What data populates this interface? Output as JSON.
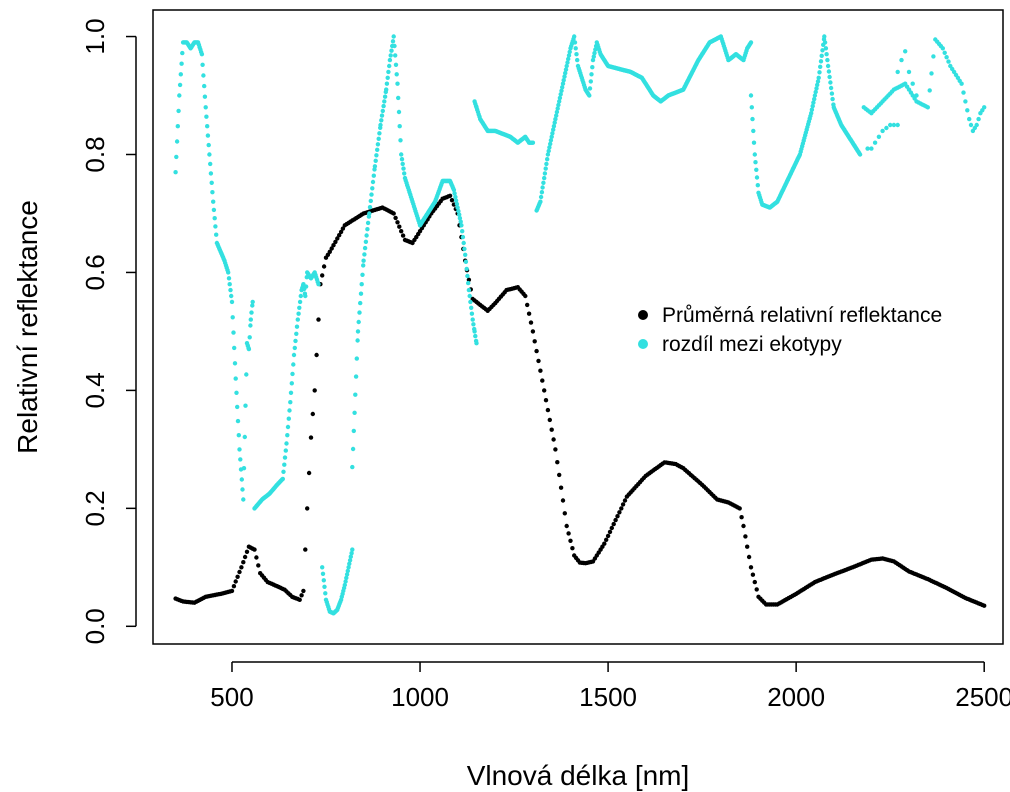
{
  "chart_data": {
    "type": "scatter",
    "title": "",
    "xlabel": "Vlnová délka [nm]",
    "ylabel": "Relativní reflektance",
    "xlim": [
      290,
      2550
    ],
    "ylim": [
      -0.03,
      1.045
    ],
    "x_ticks": [
      500,
      1000,
      1500,
      2000,
      2500
    ],
    "y_ticks": [
      0.0,
      0.2,
      0.4,
      0.6,
      0.8,
      1.0
    ],
    "x_tick_labels": [
      "500",
      "1000",
      "1500",
      "2000",
      "2500"
    ],
    "y_tick_labels": [
      "0.0",
      "0.2",
      "0.4",
      "0.6",
      "0.8",
      "1.0"
    ],
    "grid": false,
    "legend_position": "right",
    "series": [
      {
        "name": "Průměrná relativní reflektance",
        "color": "#000000",
        "step": 5,
        "x": [
          350,
          370,
          400,
          430,
          470,
          500,
          525,
          545,
          560,
          575,
          595,
          620,
          640,
          660,
          680,
          690,
          700,
          710,
          720,
          735,
          750,
          760,
          800,
          850,
          900,
          930,
          960,
          980,
          1000,
          1030,
          1060,
          1080,
          1100,
          1120,
          1140,
          1160,
          1180,
          1200,
          1230,
          1260,
          1280,
          1300,
          1330,
          1360,
          1390,
          1410,
          1425,
          1440,
          1460,
          1490,
          1550,
          1600,
          1650,
          1680,
          1700,
          1750,
          1790,
          1820,
          1850,
          1860,
          1880,
          1900,
          1920,
          1950,
          2000,
          2050,
          2100,
          2150,
          2200,
          2230,
          2260,
          2300,
          2350,
          2400,
          2450,
          2500
        ],
        "y": [
          0.047,
          0.042,
          0.04,
          0.05,
          0.055,
          0.06,
          0.1,
          0.135,
          0.13,
          0.09,
          0.075,
          0.068,
          0.062,
          0.05,
          0.045,
          0.06,
          0.2,
          0.32,
          0.4,
          0.58,
          0.625,
          0.635,
          0.68,
          0.7,
          0.71,
          0.7,
          0.655,
          0.65,
          0.67,
          0.7,
          0.725,
          0.73,
          0.7,
          0.62,
          0.555,
          0.545,
          0.535,
          0.548,
          0.57,
          0.575,
          0.56,
          0.5,
          0.4,
          0.3,
          0.17,
          0.12,
          0.108,
          0.107,
          0.11,
          0.14,
          0.22,
          0.255,
          0.278,
          0.275,
          0.268,
          0.24,
          0.215,
          0.21,
          0.2,
          0.17,
          0.1,
          0.05,
          0.037,
          0.037,
          0.055,
          0.075,
          0.088,
          0.1,
          0.113,
          0.115,
          0.11,
          0.093,
          0.08,
          0.065,
          0.048,
          0.035
        ]
      },
      {
        "name": "rozdíl mezi ekotypy",
        "color": "#33e0e0",
        "segments": [
          {
            "step": 2,
            "x": [
              350,
              360,
              370,
              380,
              390,
              400,
              410,
              420,
              430,
              440,
              450,
              460,
              470,
              480,
              490,
              500,
              510,
              520,
              530,
              540,
              545,
              550,
              555
            ],
            "y": [
              0.77,
              0.9,
              0.99,
              0.99,
              0.98,
              0.99,
              0.99,
              0.97,
              0.88,
              0.8,
              0.72,
              0.65,
              0.635,
              0.62,
              0.6,
              0.55,
              0.42,
              0.3,
              0.215,
              0.48,
              0.47,
              0.52,
              0.55
            ]
          },
          {
            "step": 2,
            "x": [
              560,
              580,
              600,
              620,
              635,
              645,
              655,
              665,
              675,
              685,
              690,
              695,
              700,
              710,
              720,
              730
            ],
            "y": [
              0.2,
              0.215,
              0.225,
              0.24,
              0.25,
              0.31,
              0.38,
              0.46,
              0.52,
              0.57,
              0.58,
              0.56,
              0.6,
              0.59,
              0.6,
              0.58
            ]
          },
          {
            "step": 2,
            "x": [
              740,
              750,
              760,
              770,
              780,
              790,
              800,
              810,
              820
            ],
            "y": [
              0.1,
              0.045,
              0.025,
              0.022,
              0.028,
              0.045,
              0.07,
              0.1,
              0.13
            ]
          },
          {
            "step": 2,
            "x": [
              820,
              835,
              850,
              865,
              880,
              895,
              910,
              920,
              930,
              940,
              950,
              960,
              980,
              1000,
              1020,
              1040,
              1060,
              1080,
              1090,
              1100,
              1110,
              1120,
              1130,
              1140,
              1145,
              1150
            ],
            "y": [
              0.27,
              0.5,
              0.62,
              0.7,
              0.78,
              0.85,
              0.91,
              0.96,
              1.0,
              0.92,
              0.8,
              0.76,
              0.72,
              0.68,
              0.7,
              0.72,
              0.755,
              0.755,
              0.74,
              0.71,
              0.68,
              0.63,
              0.57,
              0.52,
              0.5,
              0.48
            ]
          },
          {
            "step": 2,
            "x": [
              1145,
              1150,
              1160,
              1170,
              1180,
              1200,
              1220,
              1240,
              1260,
              1280,
              1290,
              1300
            ],
            "y": [
              0.89,
              0.88,
              0.86,
              0.85,
              0.84,
              0.84,
              0.835,
              0.83,
              0.82,
              0.83,
              0.82,
              0.82
            ]
          },
          {
            "step": 2,
            "x": [
              1310,
              1320,
              1340,
              1360,
              1380,
              1400,
              1410,
              1420,
              1430,
              1440,
              1450,
              1460,
              1470,
              1480,
              1490,
              1500,
              1530,
              1560,
              1590,
              1620,
              1640,
              1660,
              1700,
              1740,
              1770,
              1800,
              1820,
              1840,
              1860,
              1870,
              1880
            ],
            "y": [
              0.705,
              0.72,
              0.8,
              0.86,
              0.92,
              0.98,
              1.0,
              0.95,
              0.93,
              0.91,
              0.9,
              0.96,
              0.99,
              0.97,
              0.96,
              0.95,
              0.945,
              0.94,
              0.93,
              0.9,
              0.89,
              0.9,
              0.91,
              0.96,
              0.99,
              1.0,
              0.96,
              0.97,
              0.96,
              0.98,
              0.99
            ]
          },
          {
            "step": 2,
            "x": [
              1880,
              1890,
              1900,
              1910,
              1930,
              1950,
              1980,
              2010,
              2040,
              2060,
              2075,
              2085,
              2100,
              2120,
              2140,
              2160,
              2170
            ],
            "y": [
              0.9,
              0.8,
              0.735,
              0.715,
              0.71,
              0.72,
              0.76,
              0.8,
              0.87,
              0.93,
              1.0,
              0.95,
              0.88,
              0.85,
              0.83,
              0.81,
              0.8
            ]
          },
          {
            "step": 5,
            "x": [
              2180,
              2200,
              2230,
              2260,
              2290,
              2320,
              2350,
              2370,
              2390,
              2410,
              2440,
              2460,
              2470,
              2480,
              2490,
              2500
            ],
            "y": [
              0.88,
              0.87,
              0.89,
              0.91,
              0.92,
              0.89,
              0.88,
              0.995,
              0.98,
              0.95,
              0.92,
              0.86,
              0.84,
              0.85,
              0.87,
              0.88
            ]
          },
          {
            "step": 10,
            "x": [
              2190,
              2200,
              2210,
              2220,
              2230,
              2240,
              2250,
              2260,
              2270
            ],
            "y": [
              0.81,
              0.81,
              0.82,
              0.83,
              0.84,
              0.845,
              0.85,
              0.85,
              0.85
            ]
          },
          {
            "step": 10,
            "x": [
              2270,
              2280,
              2290,
              2300,
              2310,
              2320
            ],
            "y": [
              0.94,
              0.96,
              0.975,
              0.94,
              0.92,
              0.9
            ]
          }
        ]
      }
    ]
  }
}
